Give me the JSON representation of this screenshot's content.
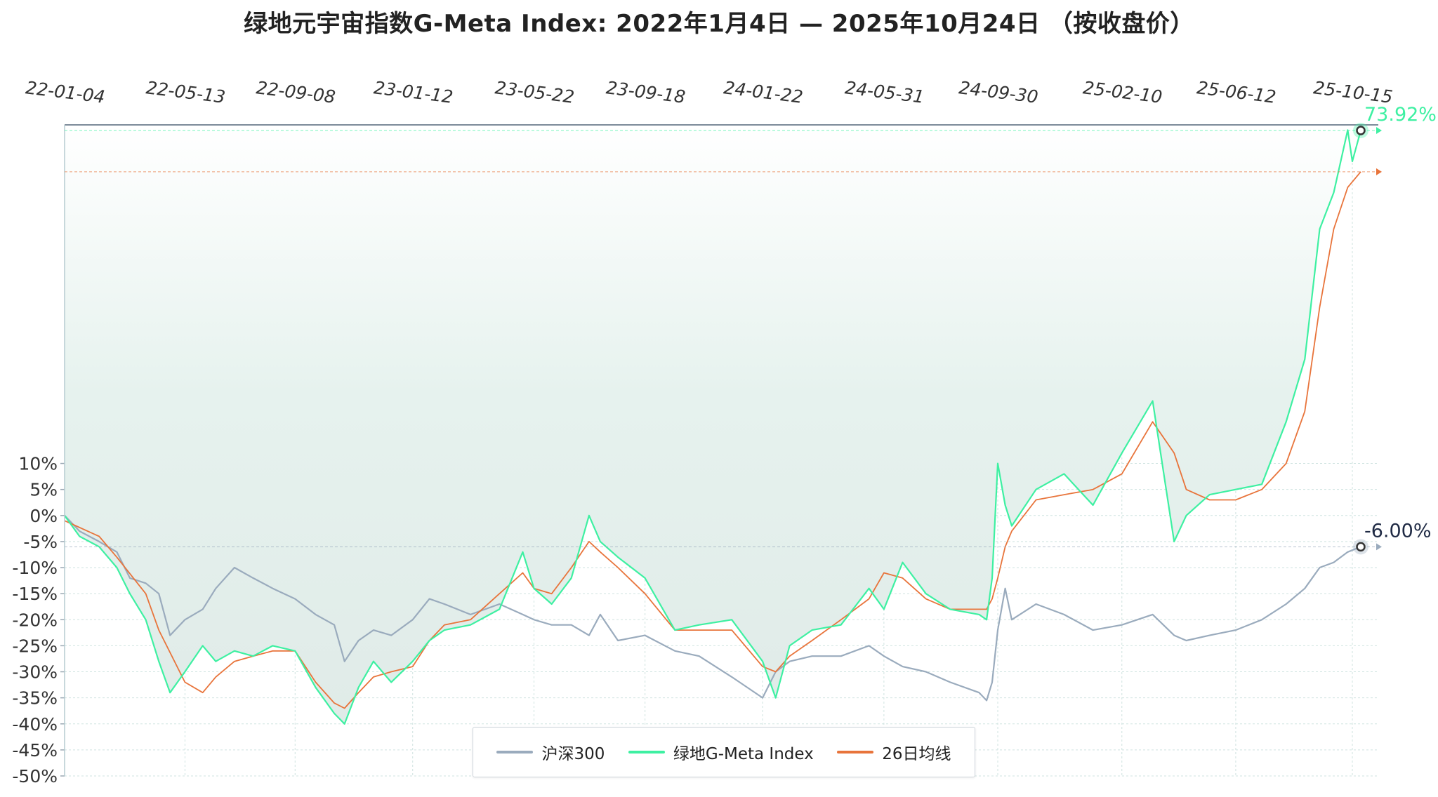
{
  "chart_data": {
    "type": "line",
    "title": "绿地元宇宙指数G-Meta Index:  2022年1月4日  —  2025年10月24日  （按收盘价）",
    "x_ticks": [
      "22-01-04",
      "22-05-13",
      "22-09-08",
      "23-01-12",
      "23-05-22",
      "23-09-18",
      "24-01-22",
      "24-05-31",
      "24-09-30",
      "25-02-10",
      "25-06-12",
      "25-10-15"
    ],
    "y_ticks": [
      "10%",
      "5%",
      "0%",
      "-5%",
      "-10%",
      "-15%",
      "-20%",
      "-25%",
      "-30%",
      "-35%",
      "-40%",
      "-45%",
      "-50%"
    ],
    "y_range": [
      -50,
      75
    ],
    "x_range": [
      "22-01-04",
      "25-10-24"
    ],
    "grid": true,
    "legend_position": "bottom-center",
    "legend": [
      "沪深300",
      "绿地G-Meta Index",
      "26日均线"
    ],
    "series": [
      {
        "name": "沪深300",
        "color": "#9aabbd",
        "end_label": "-6.00%",
        "points": [
          [
            "22-01-04",
            0
          ],
          [
            "22-01-20",
            -3
          ],
          [
            "22-02-10",
            -5
          ],
          [
            "22-03-01",
            -7
          ],
          [
            "22-03-15",
            -12
          ],
          [
            "22-04-01",
            -13
          ],
          [
            "22-04-15",
            -15
          ],
          [
            "22-04-27",
            -23
          ],
          [
            "22-05-13",
            -20
          ],
          [
            "22-06-01",
            -18
          ],
          [
            "22-06-15",
            -14
          ],
          [
            "22-07-05",
            -10
          ],
          [
            "22-07-25",
            -12
          ],
          [
            "22-08-15",
            -14
          ],
          [
            "22-09-08",
            -16
          ],
          [
            "22-09-30",
            -19
          ],
          [
            "22-10-20",
            -21
          ],
          [
            "22-10-31",
            -28
          ],
          [
            "22-11-15",
            -24
          ],
          [
            "22-12-01",
            -22
          ],
          [
            "22-12-20",
            -23
          ],
          [
            "23-01-12",
            -20
          ],
          [
            "23-01-30",
            -16
          ],
          [
            "23-02-15",
            -17
          ],
          [
            "23-03-15",
            -19
          ],
          [
            "23-04-15",
            -17
          ],
          [
            "23-05-10",
            -19
          ],
          [
            "23-05-22",
            -20
          ],
          [
            "23-06-10",
            -21
          ],
          [
            "23-07-01",
            -21
          ],
          [
            "23-07-20",
            -23
          ],
          [
            "23-08-01",
            -19
          ],
          [
            "23-08-20",
            -24
          ],
          [
            "23-09-18",
            -23
          ],
          [
            "23-10-20",
            -26
          ],
          [
            "23-11-15",
            -27
          ],
          [
            "23-12-20",
            -31
          ],
          [
            "24-01-22",
            -35
          ],
          [
            "24-02-05",
            -30
          ],
          [
            "24-02-20",
            -28
          ],
          [
            "24-03-15",
            -27
          ],
          [
            "24-04-15",
            -27
          ],
          [
            "24-05-15",
            -25
          ],
          [
            "24-05-31",
            -27
          ],
          [
            "24-06-20",
            -29
          ],
          [
            "24-07-15",
            -30
          ],
          [
            "24-08-10",
            -32
          ],
          [
            "24-09-10",
            -34
          ],
          [
            "24-09-18",
            -35.5
          ],
          [
            "24-09-24",
            -32
          ],
          [
            "24-09-30",
            -22
          ],
          [
            "24-10-08",
            -14
          ],
          [
            "24-10-15",
            -20
          ],
          [
            "24-11-10",
            -17
          ],
          [
            "24-12-10",
            -19
          ],
          [
            "25-01-10",
            -22
          ],
          [
            "25-02-10",
            -21
          ],
          [
            "25-03-15",
            -19
          ],
          [
            "25-04-07",
            -23
          ],
          [
            "25-04-20",
            -24
          ],
          [
            "25-05-15",
            -23
          ],
          [
            "25-06-12",
            -22
          ],
          [
            "25-07-10",
            -20
          ],
          [
            "25-08-05",
            -17
          ],
          [
            "25-08-25",
            -14
          ],
          [
            "25-09-10",
            -10
          ],
          [
            "25-09-25",
            -9
          ],
          [
            "25-10-10",
            -7
          ],
          [
            "25-10-24",
            -6
          ]
        ]
      },
      {
        "name": "绿地G-Meta Index",
        "color": "#3ef0a2",
        "end_label": "73.92%",
        "points": [
          [
            "22-01-04",
            0
          ],
          [
            "22-01-20",
            -4
          ],
          [
            "22-02-10",
            -6
          ],
          [
            "22-03-01",
            -10
          ],
          [
            "22-03-15",
            -15
          ],
          [
            "22-04-01",
            -20
          ],
          [
            "22-04-15",
            -28
          ],
          [
            "22-04-27",
            -34
          ],
          [
            "22-05-13",
            -30
          ],
          [
            "22-06-01",
            -25
          ],
          [
            "22-06-15",
            -28
          ],
          [
            "22-07-05",
            -26
          ],
          [
            "22-07-25",
            -27
          ],
          [
            "22-08-15",
            -25
          ],
          [
            "22-09-08",
            -26
          ],
          [
            "22-09-30",
            -33
          ],
          [
            "22-10-20",
            -38
          ],
          [
            "22-10-31",
            -40
          ],
          [
            "22-11-15",
            -33
          ],
          [
            "22-12-01",
            -28
          ],
          [
            "22-12-20",
            -32
          ],
          [
            "23-01-12",
            -28
          ],
          [
            "23-01-30",
            -24
          ],
          [
            "23-02-15",
            -22
          ],
          [
            "23-03-15",
            -21
          ],
          [
            "23-04-15",
            -18
          ],
          [
            "23-05-10",
            -7
          ],
          [
            "23-05-22",
            -14
          ],
          [
            "23-06-10",
            -17
          ],
          [
            "23-07-01",
            -12
          ],
          [
            "23-07-20",
            0
          ],
          [
            "23-08-01",
            -5
          ],
          [
            "23-08-20",
            -8
          ],
          [
            "23-09-18",
            -12
          ],
          [
            "23-10-20",
            -22
          ],
          [
            "23-11-15",
            -21
          ],
          [
            "23-12-20",
            -20
          ],
          [
            "24-01-22",
            -28
          ],
          [
            "24-02-05",
            -35
          ],
          [
            "24-02-20",
            -25
          ],
          [
            "24-03-15",
            -22
          ],
          [
            "24-04-15",
            -21
          ],
          [
            "24-05-15",
            -14
          ],
          [
            "24-05-31",
            -18
          ],
          [
            "24-06-20",
            -9
          ],
          [
            "24-07-15",
            -15
          ],
          [
            "24-08-10",
            -18
          ],
          [
            "24-09-10",
            -19
          ],
          [
            "24-09-18",
            -20
          ],
          [
            "24-09-24",
            -12
          ],
          [
            "24-09-30",
            10
          ],
          [
            "24-10-08",
            2
          ],
          [
            "24-10-15",
            -2
          ],
          [
            "24-11-10",
            5
          ],
          [
            "24-12-10",
            8
          ],
          [
            "25-01-10",
            2
          ],
          [
            "25-02-10",
            12
          ],
          [
            "25-03-15",
            22
          ],
          [
            "25-04-07",
            -5
          ],
          [
            "25-04-20",
            0
          ],
          [
            "25-05-15",
            4
          ],
          [
            "25-06-12",
            5
          ],
          [
            "25-07-10",
            6
          ],
          [
            "25-08-05",
            18
          ],
          [
            "25-08-25",
            30
          ],
          [
            "25-09-10",
            55
          ],
          [
            "25-09-25",
            62
          ],
          [
            "25-10-10",
            74
          ],
          [
            "25-10-15",
            68
          ],
          [
            "25-10-24",
            73.92
          ]
        ]
      },
      {
        "name": "26日均线",
        "color": "#e8743b",
        "points": [
          [
            "22-01-04",
            -1
          ],
          [
            "22-02-10",
            -4
          ],
          [
            "22-03-01",
            -8
          ],
          [
            "22-04-01",
            -15
          ],
          [
            "22-04-15",
            -22
          ],
          [
            "22-05-13",
            -32
          ],
          [
            "22-06-01",
            -34
          ],
          [
            "22-06-15",
            -31
          ],
          [
            "22-07-05",
            -28
          ],
          [
            "22-07-25",
            -27
          ],
          [
            "22-08-15",
            -26
          ],
          [
            "22-09-08",
            -26
          ],
          [
            "22-09-30",
            -32
          ],
          [
            "22-10-20",
            -36
          ],
          [
            "22-10-31",
            -37
          ],
          [
            "22-11-15",
            -34
          ],
          [
            "22-12-01",
            -31
          ],
          [
            "22-12-20",
            -30
          ],
          [
            "23-01-12",
            -29
          ],
          [
            "23-01-30",
            -24
          ],
          [
            "23-02-15",
            -21
          ],
          [
            "23-03-15",
            -20
          ],
          [
            "23-04-15",
            -15
          ],
          [
            "23-05-10",
            -11
          ],
          [
            "23-05-22",
            -14
          ],
          [
            "23-06-10",
            -15
          ],
          [
            "23-07-01",
            -10
          ],
          [
            "23-07-20",
            -5
          ],
          [
            "23-08-01",
            -7
          ],
          [
            "23-08-20",
            -10
          ],
          [
            "23-09-18",
            -15
          ],
          [
            "23-10-20",
            -22
          ],
          [
            "23-11-15",
            -22
          ],
          [
            "23-12-20",
            -22
          ],
          [
            "24-01-22",
            -29
          ],
          [
            "24-02-05",
            -30
          ],
          [
            "24-02-20",
            -27
          ],
          [
            "24-03-15",
            -24
          ],
          [
            "24-04-15",
            -20
          ],
          [
            "24-05-15",
            -16
          ],
          [
            "24-05-31",
            -11
          ],
          [
            "24-06-20",
            -12
          ],
          [
            "24-07-15",
            -16
          ],
          [
            "24-08-10",
            -18
          ],
          [
            "24-09-10",
            -18
          ],
          [
            "24-09-18",
            -18
          ],
          [
            "24-09-24",
            -16
          ],
          [
            "24-09-30",
            -12
          ],
          [
            "24-10-08",
            -6
          ],
          [
            "24-10-15",
            -3
          ],
          [
            "24-11-10",
            3
          ],
          [
            "24-12-10",
            4
          ],
          [
            "25-01-10",
            5
          ],
          [
            "25-02-10",
            8
          ],
          [
            "25-03-15",
            18
          ],
          [
            "25-04-07",
            12
          ],
          [
            "25-04-20",
            5
          ],
          [
            "25-05-15",
            3
          ],
          [
            "25-06-12",
            3
          ],
          [
            "25-07-10",
            5
          ],
          [
            "25-08-05",
            10
          ],
          [
            "25-08-25",
            20
          ],
          [
            "25-09-10",
            40
          ],
          [
            "25-09-25",
            55
          ],
          [
            "25-10-10",
            63
          ],
          [
            "25-10-24",
            66
          ]
        ]
      }
    ]
  }
}
